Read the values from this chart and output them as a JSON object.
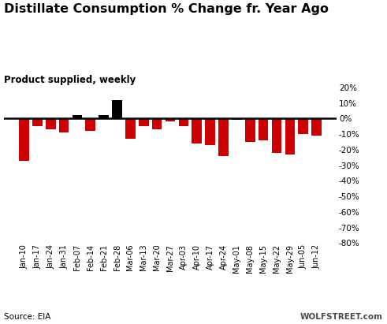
{
  "title": "Distillate Consumption % Change fr. Year Ago",
  "subtitle": "Product supplied, weekly",
  "source": "Source: EIA",
  "watermark": "WOLFSTREET.com",
  "categories": [
    "Jan-10",
    "Jan-17",
    "Jan-24",
    "Jan-31",
    "Feb-07",
    "Feb-14",
    "Feb-21",
    "Feb-28",
    "Mar-06",
    "Mar-13",
    "Mar-20",
    "Mar-27",
    "Apr-03",
    "Apr-10",
    "Apr-17",
    "Apr-24",
    "May-01",
    "May-08",
    "May-15",
    "May-22",
    "May-29",
    "Jun-05",
    "Jun-12"
  ],
  "values": [
    -27,
    -5,
    -7,
    -9,
    2,
    -8,
    2,
    12,
    -13,
    -5,
    -7,
    -2,
    -5,
    -16,
    -17,
    -24,
    -1,
    -15,
    -14,
    -22,
    -23,
    -10,
    -11
  ],
  "ylim": [
    -80,
    20
  ],
  "yticks": [
    20,
    10,
    0,
    -10,
    -20,
    -30,
    -40,
    -50,
    -60,
    -70,
    -80
  ],
  "bar_color_positive": "#000000",
  "bar_color_negative": "#cc0000",
  "title_fontsize": 11.5,
  "subtitle_fontsize": 8.5,
  "axis_fontsize": 7.5,
  "source_fontsize": 7.5,
  "background_color": "#ffffff"
}
